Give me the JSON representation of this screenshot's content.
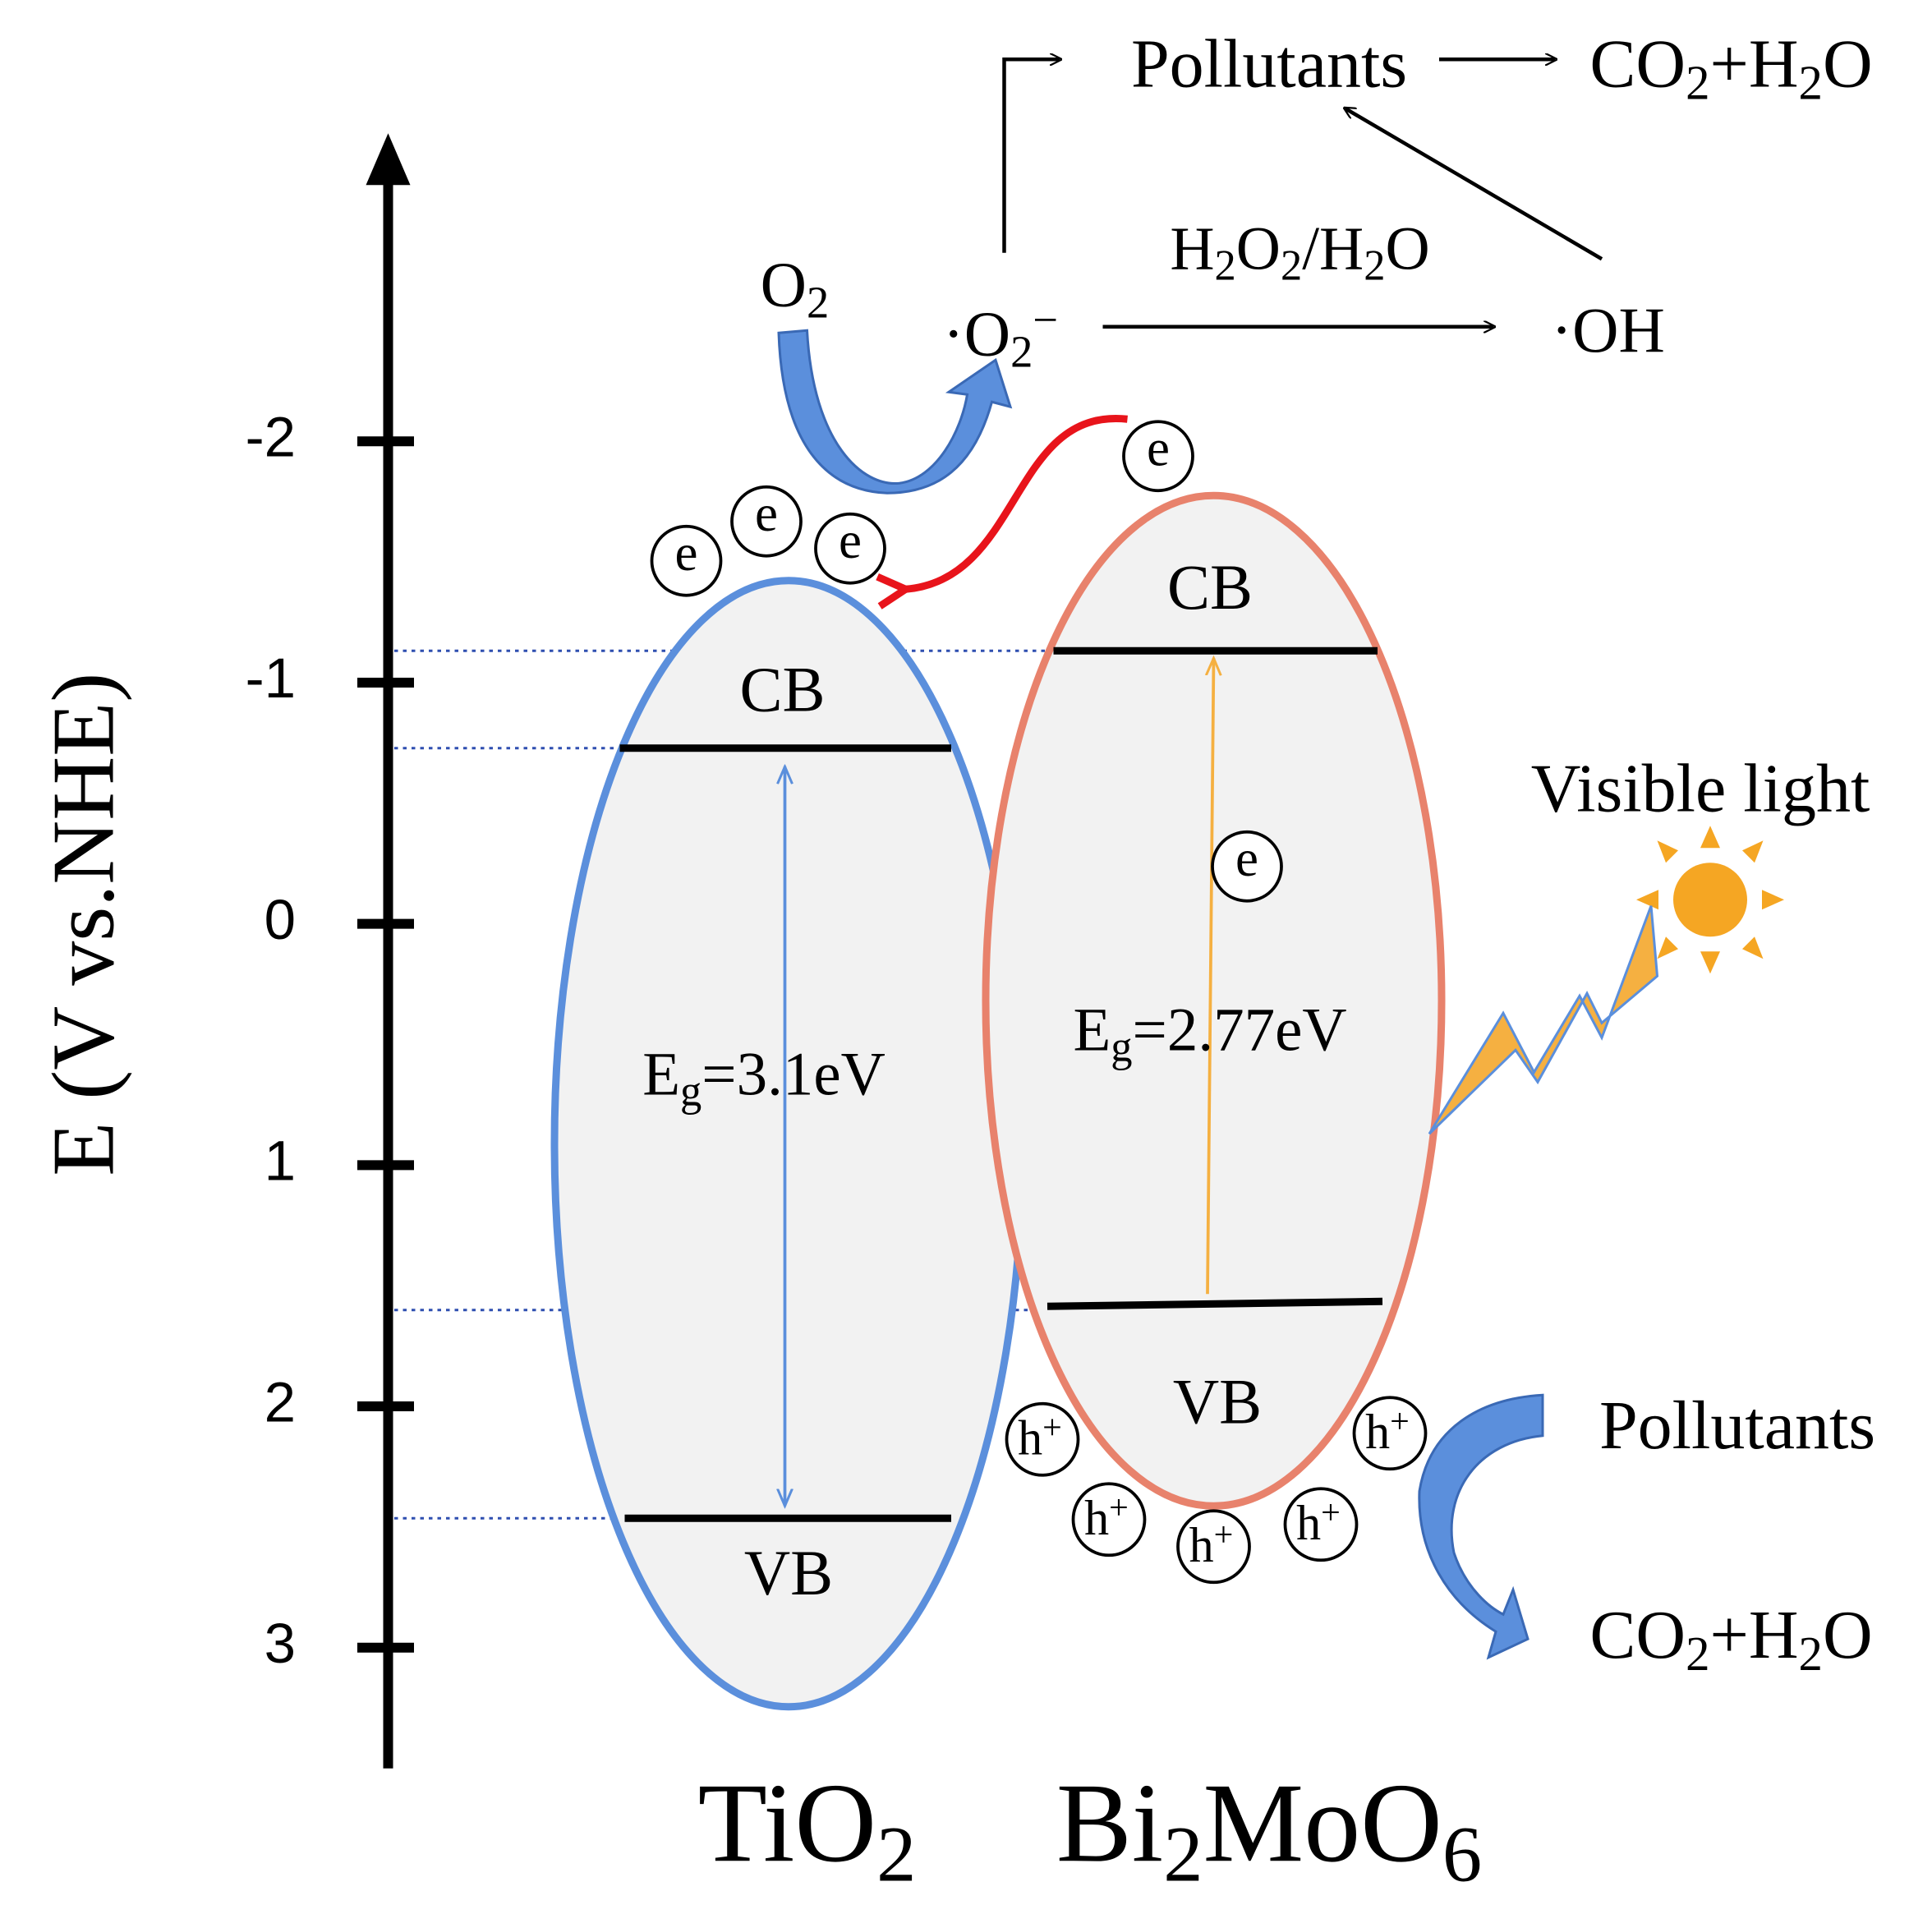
{
  "axis": {
    "label": "E (V vs.NHE)",
    "ticks": [
      -2,
      -1,
      0,
      1,
      2,
      3
    ]
  },
  "semiconductors": [
    {
      "name": [
        "TiO",
        {
          "sub": "2"
        }
      ],
      "cb": "CB",
      "vb": "VB",
      "band_gap": [
        "E",
        {
          "sub": "g"
        },
        "=3.1eV"
      ]
    },
    {
      "name": [
        "Bi",
        {
          "sub": "2"
        },
        "MoO",
        {
          "sub": "6"
        }
      ],
      "cb": "CB",
      "vb": "VB",
      "band_gap": [
        "E",
        {
          "sub": "g"
        },
        "=2.77eV"
      ]
    }
  ],
  "species": {
    "oxygen": [
      "O",
      {
        "sub": "2"
      }
    ],
    "superoxide": [
      "·O",
      {
        "sub": "2"
      },
      {
        "sup": "−"
      }
    ],
    "reagent": [
      "H",
      {
        "sub": "2"
      },
      "O",
      {
        "sub": "2"
      },
      "/H",
      {
        "sub": "2"
      },
      "O"
    ],
    "hydroxyl": "·OH",
    "pollutants_top": "Pollutants",
    "products_top": [
      "CO",
      {
        "sub": "2"
      },
      "+H",
      {
        "sub": "2"
      },
      "O"
    ],
    "pollutants_bottom": "Pollutants",
    "products_bottom": [
      "CO",
      {
        "sub": "2"
      },
      "+H",
      {
        "sub": "2"
      },
      "O"
    ]
  },
  "light": "Visible light",
  "electron": "e",
  "hole": [
    "h",
    {
      "sup": "+"
    }
  ]
}
